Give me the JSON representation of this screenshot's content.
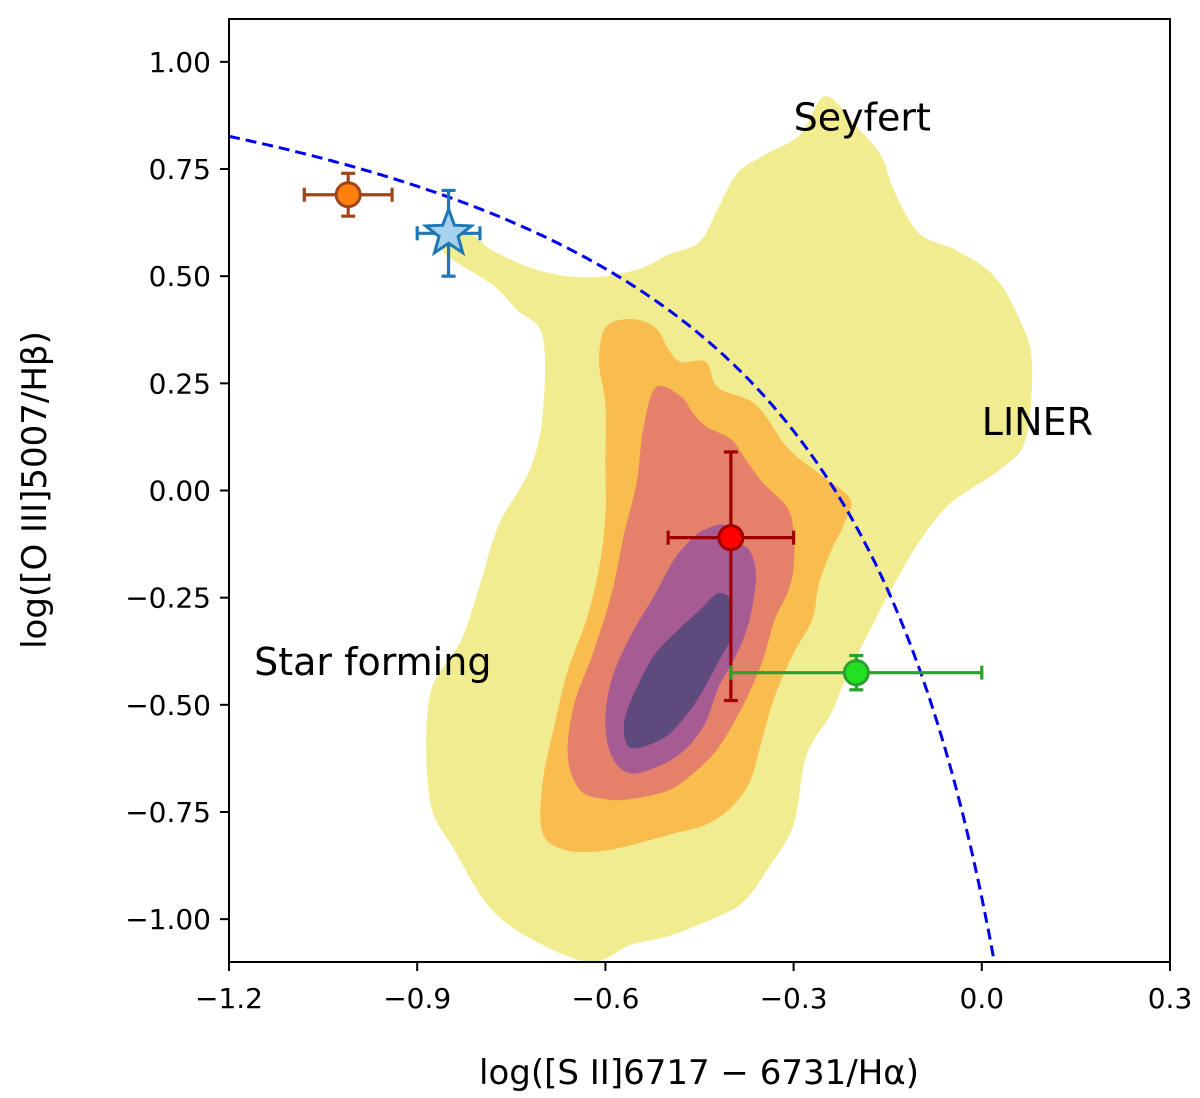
{
  "chart_data": {
    "type": "scatter",
    "xlabel": "log([S II]6717 − 6731/Hα)",
    "ylabel": "log([O III]5007/Hβ)",
    "xlim": [
      -1.2,
      0.3
    ],
    "ylim": [
      -1.1,
      1.1
    ],
    "x_ticks": [
      -1.2,
      -0.9,
      -0.6,
      -0.3,
      0.0,
      0.3
    ],
    "x_tick_labels": [
      "−1.2",
      "−0.9",
      "−0.6",
      "−0.3",
      "0.0",
      "0.3"
    ],
    "y_ticks": [
      1.0,
      0.75,
      0.5,
      0.25,
      0.0,
      -0.25,
      -0.5,
      -0.75,
      -1.0
    ],
    "y_tick_labels": [
      "1.00",
      "0.75",
      "0.50",
      "0.25",
      "0.00",
      "−0.25",
      "−0.50",
      "−0.75",
      "−1.00"
    ],
    "grid": false,
    "region_labels": [
      {
        "text": "Seyfert",
        "x": -0.3,
        "y": 0.84
      },
      {
        "text": "LINER",
        "x": 0.0,
        "y": 0.13
      },
      {
        "text": "Star forming",
        "x": -1.16,
        "y": -0.43
      }
    ],
    "demarcation_curve": {
      "style": "dashed",
      "color": "#0000ee",
      "formula": "0.72/(x - 0.32) + 1.30"
    },
    "contours": [
      {
        "level": 1,
        "color": "#f2ec91",
        "points": [
          [
            -0.86,
            0.56
          ],
          [
            -0.78,
            0.48
          ],
          [
            -0.74,
            0.42
          ],
          [
            -0.7,
            0.36
          ],
          [
            -0.7,
            0.18
          ],
          [
            -0.72,
            0.05
          ],
          [
            -0.77,
            -0.08
          ],
          [
            -0.8,
            -0.22
          ],
          [
            -0.83,
            -0.35
          ],
          [
            -0.88,
            -0.48
          ],
          [
            -0.88,
            -0.72
          ],
          [
            -0.84,
            -0.84
          ],
          [
            -0.78,
            -0.98
          ],
          [
            -0.7,
            -1.06
          ],
          [
            -0.62,
            -1.1
          ],
          [
            -0.56,
            -1.06
          ],
          [
            -0.5,
            -1.04
          ],
          [
            -0.43,
            -1.0
          ],
          [
            -0.38,
            -0.96
          ],
          [
            -0.34,
            -0.88
          ],
          [
            -0.3,
            -0.78
          ],
          [
            -0.28,
            -0.62
          ],
          [
            -0.24,
            -0.52
          ],
          [
            -0.22,
            -0.45
          ],
          [
            -0.18,
            -0.33
          ],
          [
            -0.14,
            -0.22
          ],
          [
            -0.1,
            -0.12
          ],
          [
            -0.05,
            -0.03
          ],
          [
            0.03,
            0.05
          ],
          [
            0.07,
            0.12
          ],
          [
            0.08,
            0.3
          ],
          [
            0.06,
            0.4
          ],
          [
            0.02,
            0.5
          ],
          [
            -0.04,
            0.56
          ],
          [
            -0.1,
            0.6
          ],
          [
            -0.14,
            0.7
          ],
          [
            -0.16,
            0.78
          ],
          [
            -0.2,
            0.85
          ],
          [
            -0.25,
            0.92
          ],
          [
            -0.29,
            0.83
          ],
          [
            -0.35,
            0.78
          ],
          [
            -0.39,
            0.74
          ],
          [
            -0.42,
            0.66
          ],
          [
            -0.45,
            0.58
          ],
          [
            -0.5,
            0.55
          ],
          [
            -0.54,
            0.52
          ],
          [
            -0.6,
            0.5
          ],
          [
            -0.66,
            0.5
          ],
          [
            -0.72,
            0.52
          ],
          [
            -0.78,
            0.56
          ],
          [
            -0.82,
            0.6
          ]
        ]
      },
      {
        "level": 2,
        "color": "#f9bc4f",
        "points": [
          [
            -0.6,
            0.38
          ],
          [
            -0.56,
            0.4
          ],
          [
            -0.52,
            0.38
          ],
          [
            -0.5,
            0.33
          ],
          [
            -0.48,
            0.3
          ],
          [
            -0.44,
            0.3
          ],
          [
            -0.42,
            0.24
          ],
          [
            -0.36,
            0.2
          ],
          [
            -0.31,
            0.1
          ],
          [
            -0.26,
            0.04
          ],
          [
            -0.21,
            -0.02
          ],
          [
            -0.22,
            -0.08
          ],
          [
            -0.24,
            -0.14
          ],
          [
            -0.26,
            -0.22
          ],
          [
            -0.27,
            -0.3
          ],
          [
            -0.3,
            -0.38
          ],
          [
            -0.33,
            -0.48
          ],
          [
            -0.35,
            -0.58
          ],
          [
            -0.37,
            -0.68
          ],
          [
            -0.4,
            -0.74
          ],
          [
            -0.44,
            -0.78
          ],
          [
            -0.49,
            -0.8
          ],
          [
            -0.54,
            -0.82
          ],
          [
            -0.6,
            -0.84
          ],
          [
            -0.66,
            -0.84
          ],
          [
            -0.7,
            -0.8
          ],
          [
            -0.7,
            -0.68
          ],
          [
            -0.68,
            -0.54
          ],
          [
            -0.66,
            -0.42
          ],
          [
            -0.63,
            -0.3
          ],
          [
            -0.61,
            -0.18
          ],
          [
            -0.6,
            -0.06
          ],
          [
            -0.6,
            0.06
          ],
          [
            -0.6,
            0.2
          ],
          [
            -0.61,
            0.3
          ]
        ]
      },
      {
        "level": 3,
        "color": "#e5806b",
        "points": [
          [
            -0.52,
            0.24
          ],
          [
            -0.48,
            0.22
          ],
          [
            -0.46,
            0.18
          ],
          [
            -0.44,
            0.15
          ],
          [
            -0.4,
            0.12
          ],
          [
            -0.38,
            0.08
          ],
          [
            -0.35,
            0.02
          ],
          [
            -0.31,
            -0.04
          ],
          [
            -0.3,
            -0.1
          ],
          [
            -0.3,
            -0.18
          ],
          [
            -0.31,
            -0.24
          ],
          [
            -0.33,
            -0.3
          ],
          [
            -0.35,
            -0.4
          ],
          [
            -0.38,
            -0.5
          ],
          [
            -0.42,
            -0.6
          ],
          [
            -0.46,
            -0.66
          ],
          [
            -0.5,
            -0.7
          ],
          [
            -0.56,
            -0.72
          ],
          [
            -0.6,
            -0.72
          ],
          [
            -0.64,
            -0.7
          ],
          [
            -0.66,
            -0.62
          ],
          [
            -0.65,
            -0.5
          ],
          [
            -0.62,
            -0.38
          ],
          [
            -0.59,
            -0.24
          ],
          [
            -0.57,
            -0.1
          ],
          [
            -0.55,
            0.02
          ],
          [
            -0.54,
            0.14
          ]
        ]
      },
      {
        "level": 4,
        "color": "#a65b92",
        "points": [
          [
            -0.44,
            -0.09
          ],
          [
            -0.41,
            -0.08
          ],
          [
            -0.39,
            -0.12
          ],
          [
            -0.37,
            -0.14
          ],
          [
            -0.36,
            -0.2
          ],
          [
            -0.37,
            -0.3
          ],
          [
            -0.39,
            -0.38
          ],
          [
            -0.42,
            -0.46
          ],
          [
            -0.44,
            -0.54
          ],
          [
            -0.47,
            -0.6
          ],
          [
            -0.51,
            -0.64
          ],
          [
            -0.56,
            -0.66
          ],
          [
            -0.59,
            -0.62
          ],
          [
            -0.6,
            -0.54
          ],
          [
            -0.59,
            -0.44
          ],
          [
            -0.56,
            -0.34
          ],
          [
            -0.52,
            -0.24
          ],
          [
            -0.49,
            -0.16
          ],
          [
            -0.46,
            -0.11
          ]
        ]
      },
      {
        "level": 5,
        "color": "#5e4a7d",
        "points": [
          [
            -0.42,
            -0.24
          ],
          [
            -0.4,
            -0.26
          ],
          [
            -0.4,
            -0.34
          ],
          [
            -0.42,
            -0.4
          ],
          [
            -0.45,
            -0.48
          ],
          [
            -0.48,
            -0.54
          ],
          [
            -0.51,
            -0.58
          ],
          [
            -0.56,
            -0.6
          ],
          [
            -0.57,
            -0.54
          ],
          [
            -0.55,
            -0.46
          ],
          [
            -0.52,
            -0.38
          ],
          [
            -0.48,
            -0.32
          ],
          [
            -0.45,
            -0.28
          ]
        ]
      }
    ],
    "series": [
      {
        "x": -1.01,
        "y": 0.69,
        "xerr": [
          0.07,
          0.07
        ],
        "yerr": [
          0.05,
          0.05
        ],
        "marker": "circle",
        "color": "#ff7f0e",
        "edge": "#a0451a"
      },
      {
        "x": -0.85,
        "y": 0.6,
        "xerr": [
          0.05,
          0.05
        ],
        "yerr": [
          0.1,
          0.1
        ],
        "marker": "star",
        "color": "#a6d1ef",
        "edge": "#1f77b4"
      },
      {
        "x": -0.4,
        "y": -0.11,
        "xerr": [
          0.1,
          0.1
        ],
        "yerr": [
          0.38,
          0.2
        ],
        "marker": "circle",
        "color": "#ff0000",
        "edge": "#a00000"
      },
      {
        "x": -0.2,
        "y": -0.425,
        "xerr": [
          0.2,
          0.2
        ],
        "yerr": [
          0.04,
          0.04
        ],
        "marker": "circle",
        "color": "#22e022",
        "edge": "#2ca02c"
      }
    ]
  }
}
